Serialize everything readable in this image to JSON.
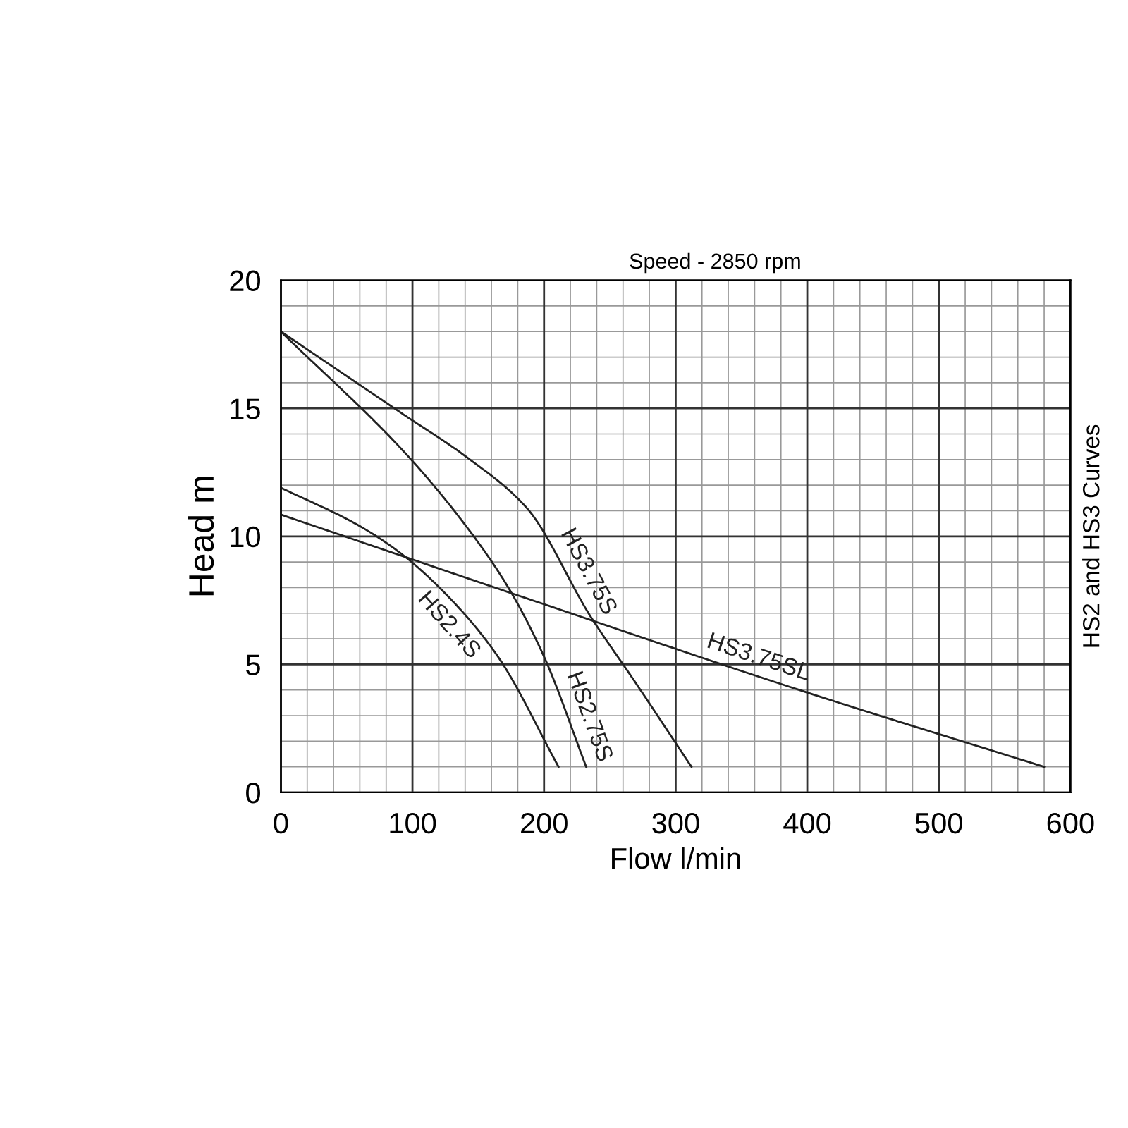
{
  "chart_data": {
    "type": "line",
    "title": "Speed - 2850 rpm",
    "xlabel": "Flow l/min",
    "ylabel": "Head m",
    "y2label": "HS2 and HS3 Curves",
    "xlim": [
      0,
      600
    ],
    "xticks": [
      0,
      100,
      200,
      300,
      400,
      500,
      600
    ],
    "ylim": [
      0,
      20
    ],
    "yticks": [
      0,
      5,
      10,
      15,
      20
    ],
    "grid": true,
    "marker": "none",
    "line_style": "solid",
    "series": [
      {
        "name": "HS3.75S",
        "color": "#222222",
        "x": [
          0,
          92,
          141,
          187,
          235,
          270,
          312
        ],
        "values": [
          18,
          14.8,
          13.1,
          11.1,
          6.9,
          4.25,
          1.0
        ]
      },
      {
        "name": "HS2.75S",
        "color": "#222222",
        "x": [
          0,
          99,
          148,
          174,
          200,
          232
        ],
        "values": [
          18,
          13.0,
          9.9,
          7.9,
          5.3,
          1.0
        ]
      },
      {
        "name": "HS2.4S",
        "color": "#222222",
        "x": [
          0,
          60,
          92,
          130,
          165,
          211
        ],
        "values": [
          11.9,
          10.4,
          9.3,
          7.5,
          5.3,
          1.0
        ]
      },
      {
        "name": "HS3.75SL",
        "color": "#222222",
        "x": [
          0,
          200,
          400,
          580
        ],
        "values": [
          10.85,
          7.35,
          3.9,
          1.0
        ]
      }
    ]
  }
}
